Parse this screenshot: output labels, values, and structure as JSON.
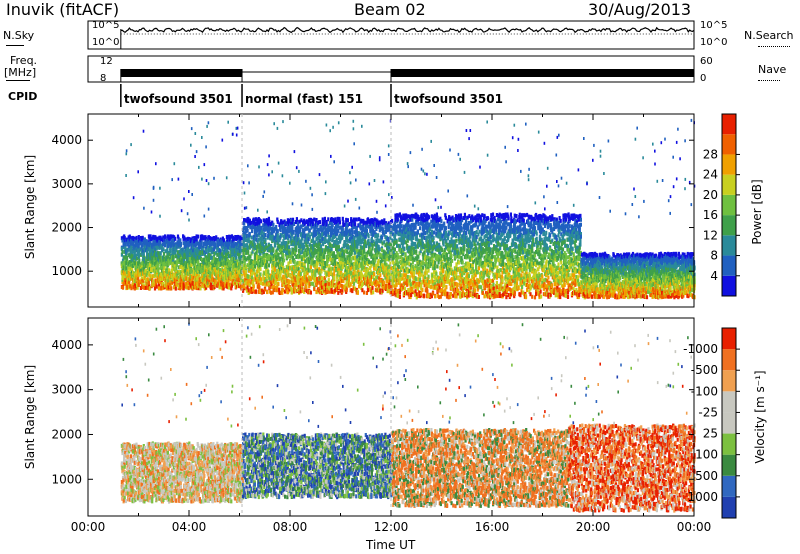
{
  "header": {
    "station": "Inuvik (fitACF)",
    "beam": "Beam 02",
    "date": "30/Aug/2013"
  },
  "noise_panel": {
    "left_label": "N.Sky",
    "left_ticks": [
      "10^5",
      "10^0"
    ],
    "right_label": "N.Search",
    "right_ticks": [
      "10^5",
      "10^0"
    ]
  },
  "freq_panel": {
    "left_label_1": "Freq.",
    "left_label_2": "[MHz]",
    "left_ticks": [
      "12",
      "8"
    ],
    "right_label": "Nave",
    "right_ticks": [
      "60",
      "0"
    ]
  },
  "cpid": {
    "label": "CPID",
    "segments": [
      {
        "start_hour": 1.3,
        "end_hour": 6.1,
        "name": "twofsound 3501"
      },
      {
        "start_hour": 6.1,
        "end_hour": 12.0,
        "name": "normal (fast) 151"
      },
      {
        "start_hour": 12.0,
        "end_hour": 24.0,
        "name": "twofsound 3501"
      }
    ]
  },
  "x_axis": {
    "label": "Time UT",
    "ticks": [
      "00:00",
      "04:00",
      "08:00",
      "12:00",
      "16:00",
      "20:00",
      "00:00"
    ]
  },
  "chart_data": [
    {
      "type": "heatmap",
      "title": "",
      "xlabel": "Time UT",
      "ylabel": "Slant Range [km]",
      "xlim_hours": [
        0,
        24
      ],
      "ylim_km": [
        180,
        4600
      ],
      "yticks": [
        1000,
        2000,
        3000,
        4000
      ],
      "colorbar": {
        "label": "Power [dB]",
        "ticks": [
          4,
          8,
          12,
          16,
          20,
          24,
          28
        ],
        "colors": [
          "#1010e0",
          "#2060c0",
          "#2a8a9a",
          "#3fa04a",
          "#6fc040",
          "#c8d020",
          "#f0a000",
          "#f06000",
          "#e82000"
        ]
      },
      "data_start_hour": 1.3,
      "scatter_bands": [
        {
          "from_hour": 1.3,
          "to_hour": 6.1,
          "low_km": 600,
          "high_km": 1800,
          "level": "high"
        },
        {
          "from_hour": 6.1,
          "to_hour": 12.0,
          "low_km": 500,
          "high_km": 2200,
          "level": "high"
        },
        {
          "from_hour": 12.0,
          "to_hour": 19.5,
          "low_km": 400,
          "high_km": 2300,
          "level": "mid"
        },
        {
          "from_hour": 19.5,
          "to_hour": 24.0,
          "low_km": 400,
          "high_km": 1400,
          "level": "high"
        }
      ]
    },
    {
      "type": "heatmap",
      "title": "",
      "xlabel": "Time UT",
      "ylabel": "Slant Range [km]",
      "xlim_hours": [
        0,
        24
      ],
      "ylim_km": [
        180,
        4600
      ],
      "yticks": [
        1000,
        2000,
        3000,
        4000
      ],
      "colorbar": {
        "label": "Velocity [m s⁻¹]",
        "ticks": [
          "1000",
          "500",
          "100",
          "25",
          "-25",
          "-100",
          "-500",
          "-1000"
        ],
        "colors": [
          "#2040b0",
          "#3068c0",
          "#3a8a40",
          "#7cc040",
          "#c8c8c0",
          "#c8c8c0",
          "#f0a050",
          "#f07020",
          "#e82000"
        ]
      },
      "data_start_hour": 1.3,
      "scatter_bands": [
        {
          "from_hour": 1.3,
          "to_hour": 6.1,
          "low_km": 500,
          "high_km": 1800,
          "level": "orange-grey"
        },
        {
          "from_hour": 6.1,
          "to_hour": 12.0,
          "low_km": 600,
          "high_km": 2000,
          "level": "blue-green"
        },
        {
          "from_hour": 12.0,
          "to_hour": 19.0,
          "low_km": 400,
          "high_km": 2100,
          "level": "orange"
        },
        {
          "from_hour": 19.0,
          "to_hour": 24.0,
          "low_km": 300,
          "high_km": 2200,
          "level": "orange-red"
        }
      ]
    }
  ]
}
